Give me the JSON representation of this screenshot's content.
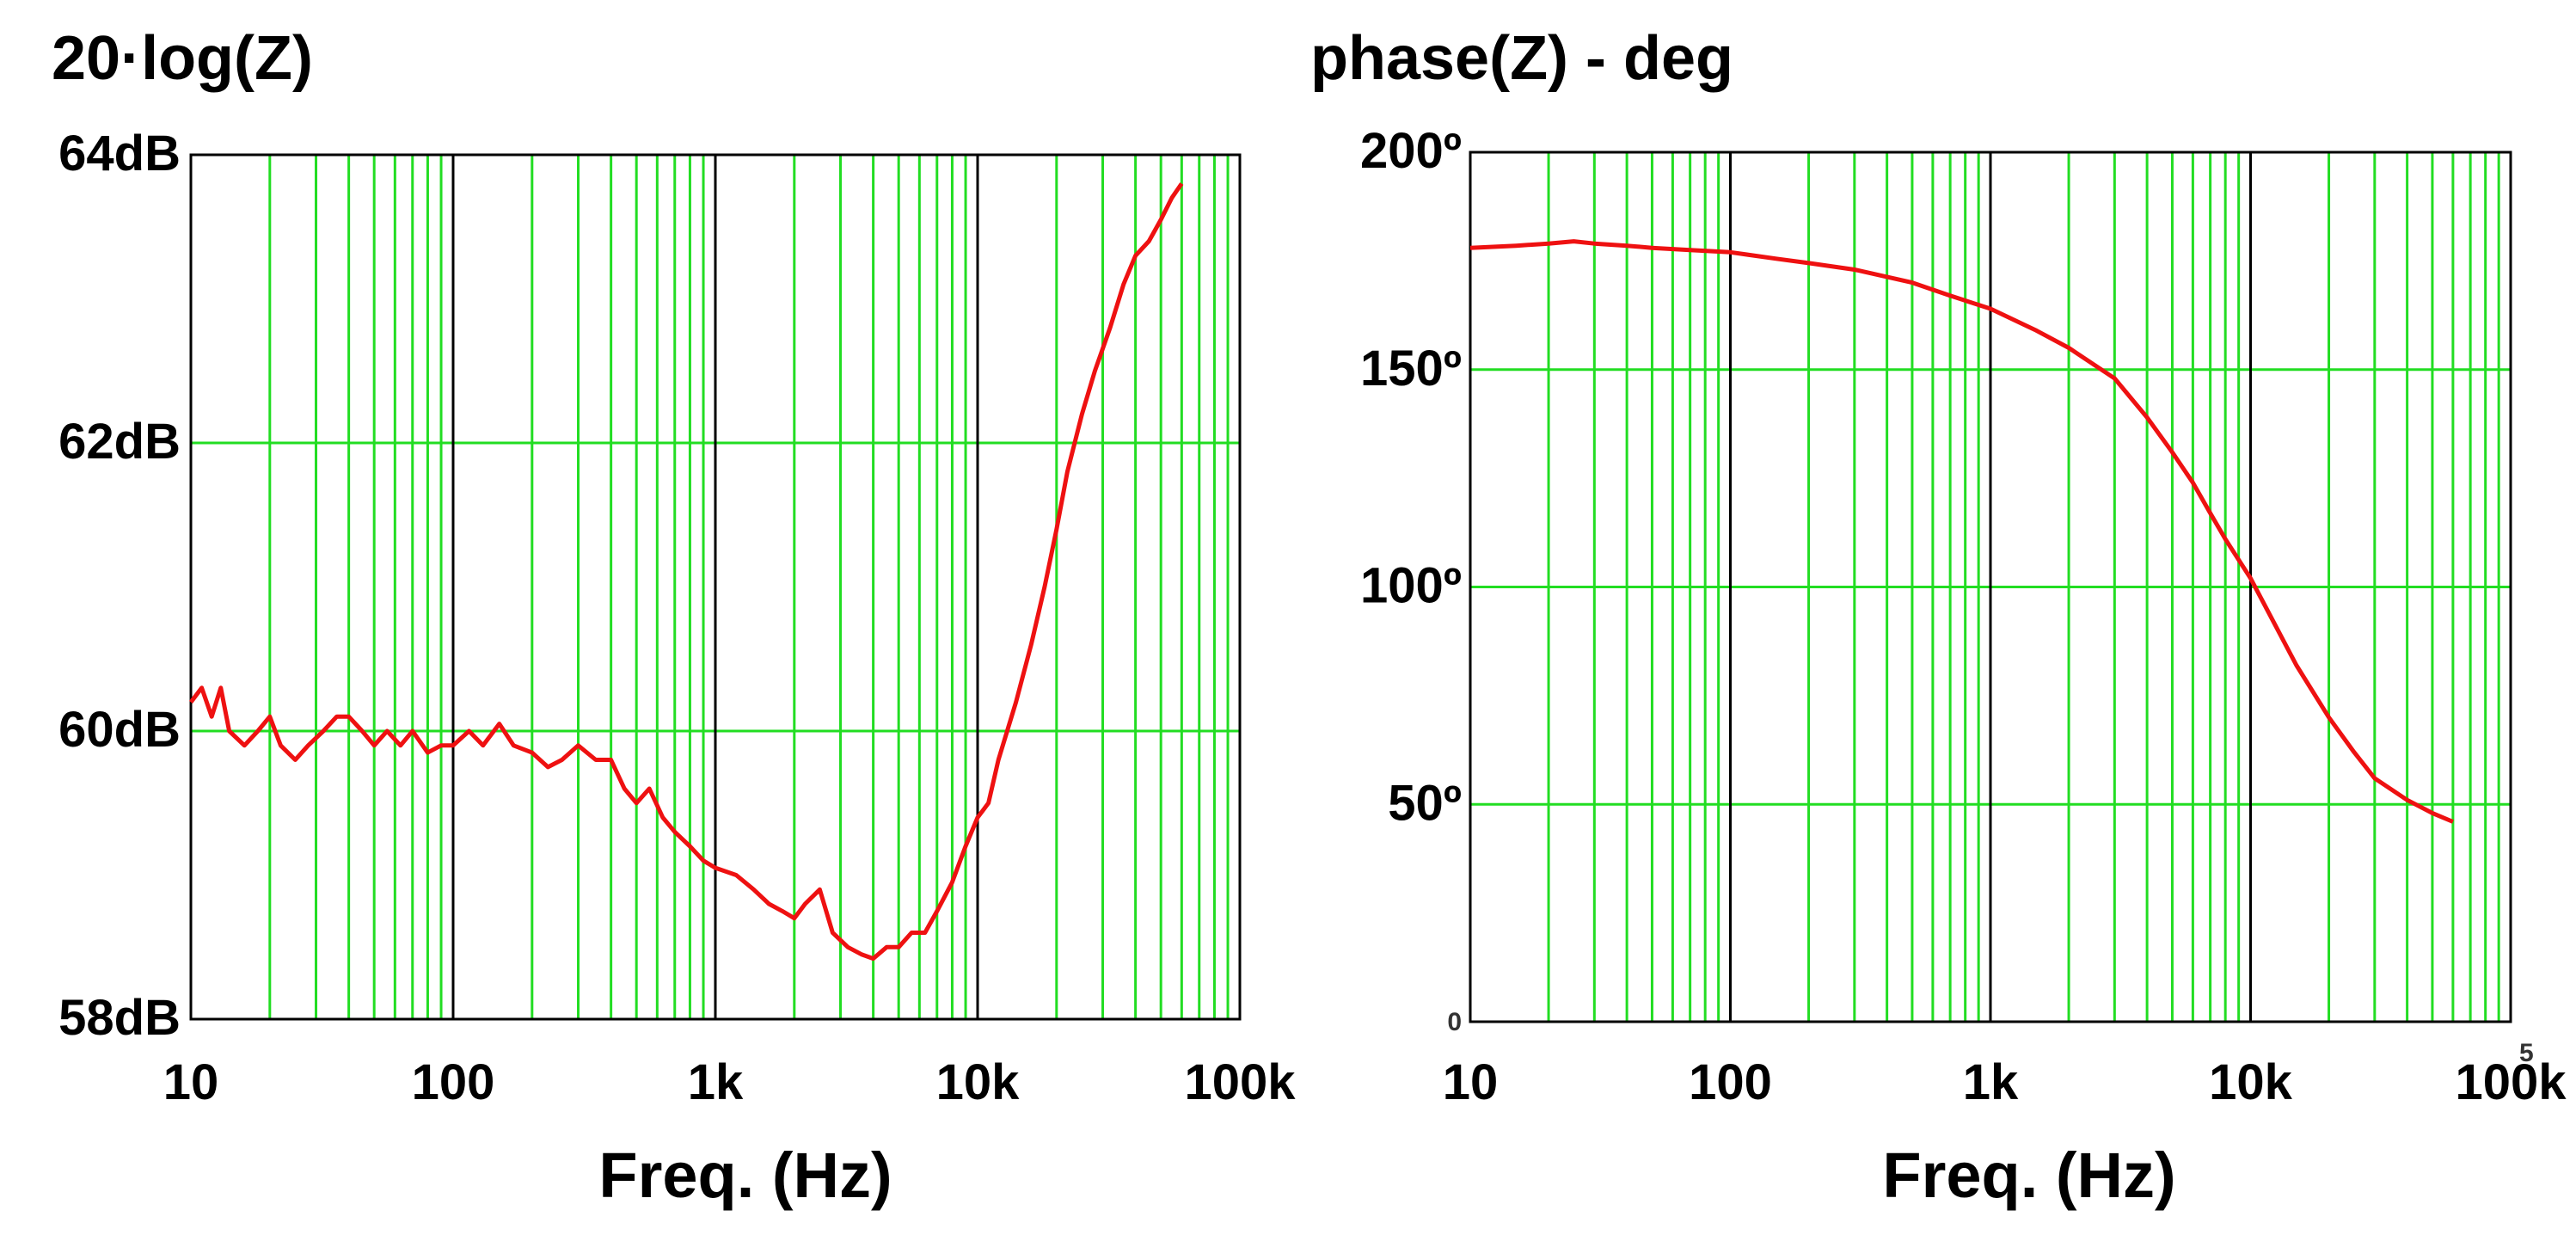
{
  "colors": {
    "grid_minor": "#22dd22",
    "grid_major": "#000000",
    "series": "#ee1111",
    "frame": "#000000"
  },
  "chart_data": [
    {
      "type": "line",
      "title": "20·log(Z)",
      "xlabel": "Freq.  (Hz)",
      "x_scale": "log",
      "xlim": [
        10,
        100000
      ],
      "ylim": [
        58,
        64
      ],
      "x_ticks": [
        10,
        100,
        1000,
        10000,
        100000
      ],
      "x_tick_labels": [
        "10",
        "100",
        "1k",
        "10k",
        "100k"
      ],
      "y_ticks": [
        58,
        60,
        62,
        64
      ],
      "y_tick_labels": [
        "58dB",
        "60dB",
        "62dB",
        "64dB"
      ],
      "grid": true,
      "series": [
        {
          "x": [
            10,
            11,
            12,
            13,
            14,
            16,
            18,
            20,
            22,
            25,
            28,
            32,
            36,
            40,
            45,
            50,
            56,
            63,
            70,
            80,
            90,
            100,
            115,
            130,
            150,
            170,
            200,
            230,
            260,
            300,
            350,
            400,
            450,
            500,
            560,
            630,
            700,
            800,
            900,
            1000,
            1200,
            1400,
            1600,
            1800,
            2000,
            2200,
            2500,
            2800,
            3200,
            3600,
            4000,
            4500,
            5000,
            5600,
            6300,
            7000,
            8000,
            9000,
            10000,
            11000,
            12000,
            14000,
            16000,
            18000,
            20000,
            22000,
            25000,
            28000,
            32000,
            36000,
            40000,
            45000,
            50000,
            55000,
            60000
          ],
          "y": [
            60.2,
            60.3,
            60.1,
            60.3,
            60.0,
            59.9,
            60.0,
            60.1,
            59.9,
            59.8,
            59.9,
            60.0,
            60.1,
            60.1,
            60.0,
            59.9,
            60.0,
            59.9,
            60.0,
            59.85,
            59.9,
            59.9,
            60.0,
            59.9,
            60.05,
            59.9,
            59.85,
            59.75,
            59.8,
            59.9,
            59.8,
            59.8,
            59.6,
            59.5,
            59.6,
            59.4,
            59.3,
            59.2,
            59.1,
            59.05,
            59.0,
            58.9,
            58.8,
            58.75,
            58.7,
            58.8,
            58.9,
            58.6,
            58.5,
            58.45,
            58.42,
            58.5,
            58.5,
            58.6,
            58.6,
            58.75,
            58.95,
            59.2,
            59.4,
            59.5,
            59.8,
            60.2,
            60.6,
            61.0,
            61.4,
            61.8,
            62.2,
            62.5,
            62.8,
            63.1,
            63.3,
            63.4,
            63.55,
            63.7,
            63.8
          ]
        }
      ]
    },
    {
      "type": "line",
      "title": "phase(Z) - deg",
      "xlabel": "Freq.  (Hz)",
      "x_scale": "log",
      "xlim": [
        10,
        100000
      ],
      "ylim": [
        0,
        200
      ],
      "x_ticks": [
        10,
        100,
        1000,
        10000,
        100000
      ],
      "x_tick_labels": [
        "10",
        "100",
        "1k",
        "10k",
        "100k"
      ],
      "x_tick_suffix": "5",
      "y_ticks": [
        0,
        50,
        100,
        150,
        200
      ],
      "y_tick_labels": [
        "0",
        "50º",
        "100º",
        "150º",
        "200º"
      ],
      "grid": true,
      "series": [
        {
          "x": [
            10,
            15,
            20,
            25,
            30,
            40,
            50,
            70,
            100,
            150,
            200,
            300,
            500,
            700,
            1000,
            1500,
            2000,
            3000,
            4000,
            5000,
            6000,
            7000,
            8000,
            10000,
            12000,
            15000,
            20000,
            25000,
            30000,
            40000,
            50000,
            60000
          ],
          "y": [
            178,
            178.5,
            179,
            179.5,
            179,
            178.5,
            178,
            177.5,
            177,
            175.5,
            174.5,
            173,
            170,
            167,
            164,
            159,
            155,
            148,
            139,
            131,
            124,
            117,
            111,
            102,
            93,
            82,
            70,
            62,
            56,
            51,
            48,
            46
          ]
        }
      ]
    }
  ]
}
